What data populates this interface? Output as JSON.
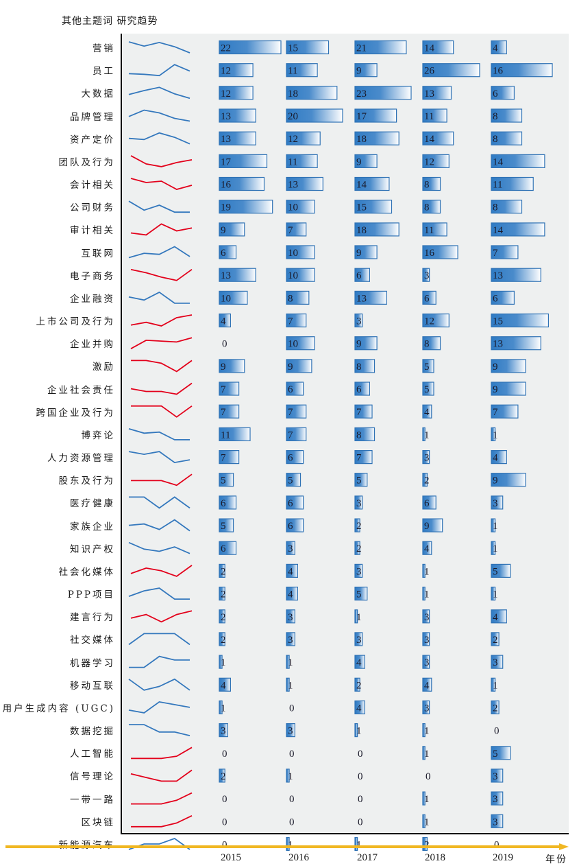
{
  "title": "其他主题词  研究趋势",
  "x_unit_label": "年份",
  "colors": {
    "bar_fill_start": "#2f7bc4",
    "bar_fill_end": "#ffffff",
    "bar_border": "#2f72b5",
    "trend_up": "#e3001b",
    "trend_down": "#3478bd",
    "panel_bg": "#eef0f0",
    "axis_arrow": "#f0b723"
  },
  "chart_data": {
    "type": "table",
    "title": "其他主题词  研究趋势",
    "xlabel": "年份",
    "ylabel": "",
    "categories": [
      "2015",
      "2016",
      "2017",
      "2018",
      "2019"
    ],
    "rows": [
      {
        "topic": "营销",
        "values": [
          22,
          15,
          21,
          14,
          4
        ],
        "trend": "down"
      },
      {
        "topic": "员工",
        "values": [
          12,
          11,
          9,
          26,
          16
        ],
        "trend": "down"
      },
      {
        "topic": "大数据",
        "values": [
          12,
          18,
          23,
          13,
          6
        ],
        "trend": "down"
      },
      {
        "topic": "品牌管理",
        "values": [
          13,
          20,
          17,
          11,
          8
        ],
        "trend": "down"
      },
      {
        "topic": "资产定价",
        "values": [
          13,
          12,
          18,
          14,
          8
        ],
        "trend": "down"
      },
      {
        "topic": "团队及行为",
        "values": [
          17,
          11,
          9,
          12,
          14
        ],
        "trend": "up"
      },
      {
        "topic": "会计相关",
        "values": [
          16,
          13,
          14,
          8,
          11
        ],
        "trend": "up"
      },
      {
        "topic": "公司财务",
        "values": [
          19,
          10,
          15,
          8,
          8
        ],
        "trend": "down"
      },
      {
        "topic": "审计相关",
        "values": [
          9,
          7,
          18,
          11,
          14
        ],
        "trend": "up"
      },
      {
        "topic": "互联网",
        "values": [
          6,
          10,
          9,
          16,
          7
        ],
        "trend": "down"
      },
      {
        "topic": "电子商务",
        "values": [
          13,
          10,
          6,
          3,
          13
        ],
        "trend": "up"
      },
      {
        "topic": "企业融资",
        "values": [
          10,
          8,
          13,
          6,
          6
        ],
        "trend": "down"
      },
      {
        "topic": "上市公司及行为",
        "values": [
          4,
          7,
          3,
          12,
          15
        ],
        "trend": "up"
      },
      {
        "topic": "企业并购",
        "values": [
          0,
          10,
          9,
          8,
          13
        ],
        "trend": "up"
      },
      {
        "topic": "激励",
        "values": [
          9,
          9,
          8,
          5,
          9
        ],
        "trend": "up"
      },
      {
        "topic": "企业社会责任",
        "values": [
          7,
          6,
          6,
          5,
          9
        ],
        "trend": "up"
      },
      {
        "topic": "跨国企业及行为",
        "values": [
          7,
          7,
          7,
          4,
          7
        ],
        "trend": "up"
      },
      {
        "topic": "博弈论",
        "values": [
          11,
          7,
          8,
          1,
          1
        ],
        "trend": "down"
      },
      {
        "topic": "人力资源管理",
        "values": [
          7,
          6,
          7,
          3,
          4
        ],
        "trend": "down"
      },
      {
        "topic": "股东及行为",
        "values": [
          5,
          5,
          5,
          2,
          9
        ],
        "trend": "up"
      },
      {
        "topic": "医疗健康",
        "values": [
          6,
          6,
          3,
          6,
          3
        ],
        "trend": "down"
      },
      {
        "topic": "家族企业",
        "values": [
          5,
          6,
          2,
          9,
          1
        ],
        "trend": "down"
      },
      {
        "topic": "知识产权",
        "values": [
          6,
          3,
          2,
          4,
          1
        ],
        "trend": "down"
      },
      {
        "topic": "社会化媒体",
        "values": [
          2,
          4,
          3,
          1,
          5
        ],
        "trend": "up"
      },
      {
        "topic": "PPP项目",
        "values": [
          2,
          4,
          5,
          1,
          1
        ],
        "trend": "down"
      },
      {
        "topic": "建言行为",
        "values": [
          2,
          3,
          1,
          3,
          4
        ],
        "trend": "up"
      },
      {
        "topic": "社交媒体",
        "values": [
          2,
          3,
          3,
          3,
          2
        ],
        "trend": "down"
      },
      {
        "topic": "机器学习",
        "values": [
          1,
          1,
          4,
          3,
          3
        ],
        "trend": "down"
      },
      {
        "topic": "移动互联",
        "values": [
          4,
          1,
          2,
          4,
          1
        ],
        "trend": "down"
      },
      {
        "topic": "用户生成内容 (UGC)",
        "values": [
          1,
          0,
          4,
          3,
          2
        ],
        "trend": "down"
      },
      {
        "topic": "数据挖掘",
        "values": [
          3,
          3,
          1,
          1,
          0
        ],
        "trend": "down"
      },
      {
        "topic": "人工智能",
        "values": [
          0,
          0,
          0,
          1,
          5
        ],
        "trend": "up"
      },
      {
        "topic": "信号理论",
        "values": [
          2,
          1,
          0,
          0,
          3
        ],
        "trend": "up"
      },
      {
        "topic": "一带一路",
        "values": [
          0,
          0,
          0,
          1,
          3
        ],
        "trend": "up"
      },
      {
        "topic": "区块链",
        "values": [
          0,
          0,
          0,
          1,
          3
        ],
        "trend": "up"
      },
      {
        "topic": "新能源汽车",
        "values": [
          0,
          1,
          1,
          2,
          0
        ],
        "trend": "down"
      }
    ],
    "legend": "none",
    "grid": false
  }
}
